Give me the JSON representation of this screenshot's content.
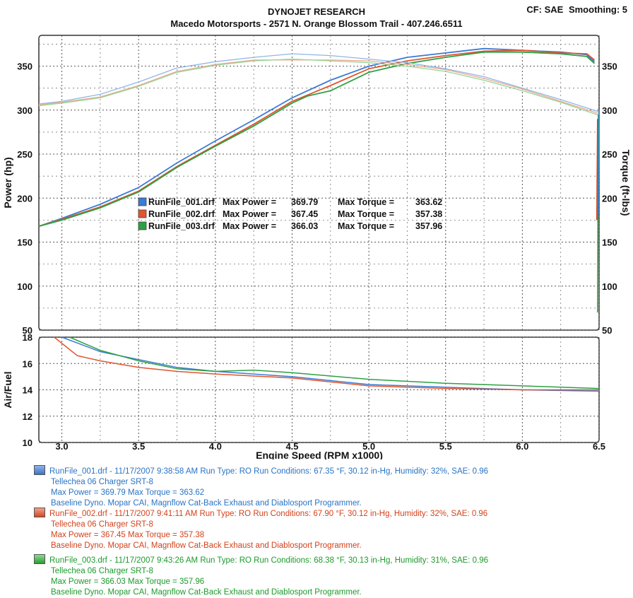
{
  "header": {
    "title": "DYNOJET RESEARCH",
    "shop": "Macedo Motorsports - 2571 N. Orange Blossom Trail - 407.246.6511",
    "cf": "CF: SAE",
    "smoothing": "Smoothing: 5"
  },
  "chart_data": [
    {
      "type": "line",
      "xlabel": "Engine Speed (RPM x1000)",
      "ylabel": "Power (hp)",
      "y2label": "Torque (ft-lbs)",
      "xlim": [
        2.85,
        6.5
      ],
      "ylim": [
        50,
        385
      ],
      "y2lim": [
        50,
        385
      ],
      "x_ticks": [
        3.0,
        3.5,
        4.0,
        4.5,
        5.0,
        5.5,
        6.0,
        6.5
      ],
      "x_tick_labels": [
        "3.0",
        "3.5",
        "4.0",
        "4.5",
        "5.0",
        "5.5",
        "6.0",
        "6.5"
      ],
      "y_ticks": [
        50,
        100,
        150,
        200,
        250,
        300,
        350
      ],
      "y_tick_labels": [
        "50",
        "100",
        "150",
        "200",
        "250",
        "300",
        "350"
      ],
      "y2_ticks": [
        50,
        100,
        150,
        200,
        250,
        300,
        350
      ],
      "y2_tick_labels": [
        "50",
        "100",
        "150",
        "200",
        "250",
        "300",
        "350"
      ],
      "grid": true,
      "inline_legend": [
        {
          "file": "RunFile_001.drf",
          "max_power_label": "Max Power =",
          "max_power": "369.79",
          "max_torque_label": "Max Torque =",
          "max_torque": "363.62",
          "color": "#3a7bd5"
        },
        {
          "file": "RunFile_002.drf",
          "max_power_label": "Max Power =",
          "max_power": "367.45",
          "max_torque_label": "Max Torque =",
          "max_torque": "357.38",
          "color": "#e0552e"
        },
        {
          "file": "RunFile_003.drf",
          "max_power_label": "Max Power =",
          "max_power": "366.03",
          "max_torque_label": "Max Torque =",
          "max_torque": "357.96",
          "color": "#2ea043"
        }
      ],
      "series": [
        {
          "color": "#3a7bd5",
          "kind": "power",
          "x": [
            2.85,
            3.0,
            3.25,
            3.5,
            3.75,
            4.0,
            4.25,
            4.5,
            4.75,
            5.0,
            5.25,
            5.5,
            5.75,
            6.0,
            6.25,
            6.42,
            6.47
          ],
          "y": [
            168,
            177,
            193,
            212,
            240,
            265,
            289,
            314,
            334,
            350,
            360,
            365,
            370,
            368,
            366,
            363,
            355
          ]
        },
        {
          "color": "#e0552e",
          "kind": "power",
          "x": [
            2.85,
            3.0,
            3.25,
            3.5,
            3.75,
            4.0,
            4.25,
            4.5,
            4.75,
            5.0,
            5.25,
            5.5,
            5.75,
            6.0,
            6.25,
            6.42,
            6.47
          ],
          "y": [
            168,
            176,
            190,
            208,
            236,
            260,
            284,
            310,
            328,
            347,
            356,
            362,
            367,
            368,
            365,
            364,
            357
          ]
        },
        {
          "color": "#2ea043",
          "kind": "power",
          "x": [
            2.85,
            3.0,
            3.25,
            3.5,
            3.75,
            4.0,
            4.25,
            4.5,
            4.6,
            4.75,
            5.0,
            5.25,
            5.5,
            5.75,
            6.0,
            6.25,
            6.42,
            6.47
          ],
          "y": [
            168,
            175,
            189,
            207,
            235,
            259,
            282,
            308,
            316,
            322,
            343,
            353,
            360,
            366,
            366,
            364,
            361,
            353
          ]
        },
        {
          "color": "#8fb6e6",
          "kind": "torque",
          "x": [
            2.85,
            3.0,
            3.25,
            3.5,
            3.75,
            4.0,
            4.25,
            4.5,
            4.75,
            5.0,
            5.25,
            5.5,
            5.75,
            6.0,
            6.25,
            6.5
          ],
          "y": [
            307,
            310,
            318,
            332,
            348,
            355,
            360,
            364,
            362,
            358,
            354,
            347,
            338,
            325,
            312,
            298
          ]
        },
        {
          "color": "#f0a890",
          "kind": "torque",
          "x": [
            2.85,
            3.0,
            3.25,
            3.5,
            3.75,
            4.0,
            4.25,
            4.5,
            4.75,
            5.0,
            5.25,
            5.5,
            5.75,
            6.0,
            6.25,
            6.5
          ],
          "y": [
            306,
            309,
            315,
            328,
            344,
            352,
            357,
            357,
            357,
            356,
            352,
            346,
            336,
            324,
            310,
            296
          ]
        },
        {
          "color": "#94d494",
          "kind": "torque",
          "x": [
            2.85,
            3.0,
            3.25,
            3.5,
            3.75,
            4.0,
            4.25,
            4.5,
            4.75,
            5.0,
            5.25,
            5.5,
            5.75,
            6.0,
            6.25,
            6.5
          ],
          "y": [
            305,
            308,
            314,
            327,
            343,
            351,
            356,
            358,
            356,
            354,
            350,
            344,
            334,
            322,
            309,
            294
          ]
        }
      ]
    },
    {
      "type": "line",
      "xlabel": "Engine Speed (RPM x1000)",
      "ylabel": "Air/Fuel",
      "xlim": [
        2.85,
        6.5
      ],
      "ylim": [
        10,
        18
      ],
      "x_ticks": [
        3.0,
        3.5,
        4.0,
        4.5,
        5.0,
        5.5,
        6.0,
        6.5
      ],
      "x_tick_labels": [
        "3.0",
        "3.5",
        "4.0",
        "4.5",
        "5.0",
        "5.5",
        "6.0",
        "6.5"
      ],
      "y_ticks": [
        10,
        12,
        14,
        16,
        18
      ],
      "y_tick_labels": [
        "10",
        "12",
        "14",
        "16",
        "18"
      ],
      "grid": true,
      "series": [
        {
          "color": "#3a7bd5",
          "x": [
            3.0,
            3.25,
            3.5,
            3.75,
            4.0,
            4.5,
            5.0,
            5.5,
            6.0,
            6.5
          ],
          "y": [
            18.0,
            16.9,
            16.3,
            15.7,
            15.4,
            15.0,
            14.4,
            14.2,
            14.0,
            13.9
          ]
        },
        {
          "color": "#e0552e",
          "x": [
            2.95,
            3.1,
            3.25,
            3.5,
            3.75,
            4.0,
            4.5,
            5.0,
            5.5,
            6.0,
            6.5
          ],
          "y": [
            18.0,
            16.6,
            16.2,
            15.7,
            15.4,
            15.2,
            14.9,
            14.3,
            14.1,
            14.0,
            14.0
          ]
        },
        {
          "color": "#2ea043",
          "x": [
            3.05,
            3.25,
            3.5,
            3.75,
            4.0,
            4.25,
            4.5,
            5.0,
            5.5,
            6.0,
            6.5
          ],
          "y": [
            18.0,
            17.0,
            16.2,
            15.6,
            15.4,
            15.5,
            15.3,
            14.8,
            14.5,
            14.3,
            14.1
          ]
        }
      ]
    }
  ],
  "runs": [
    {
      "line1": "RunFile_001.drf - 11/17/2007 9:38:58 AM  Run Type: RO  Run Conditions: 67.35 °F, 30.12 in-Hg,  Humidity:  32%, SAE: 0.96",
      "line2": "Tellechea 06 Charger SRT-8",
      "line3": "Max Power = 369.79  Max Torque = 363.62",
      "line4": "Baseline Dyno. Mopar CAI, Magnflow Cat-Back Exhaust and Diablosport Programmer."
    },
    {
      "line1": "RunFile_002.drf - 11/17/2007 9:41:11 AM  Run Type: RO  Run Conditions: 67.90 °F, 30.12 in-Hg,  Humidity:  32%, SAE: 0.96",
      "line2": "Tellechea 06 Charger SRT-8",
      "line3": "Max Power = 367.45  Max Torque = 357.38",
      "line4": "Baseline Dyno. Mopar CAI, Magnflow Cat-Back Exhaust and Diablosport Programmer."
    },
    {
      "line1": "RunFile_003.drf - 11/17/2007 9:43:26 AM  Run Type: RO  Run Conditions: 68.38 °F, 30.13 in-Hg,  Humidity:  31%, SAE: 0.96",
      "line2": "Tellechea 06 Charger SRT-8",
      "line3": "Max Power = 366.03  Max Torque = 357.96",
      "line4": "Baseline Dyno. Mopar CAI, Magnflow Cat-Back Exhaust and Diablosport Programmer."
    }
  ]
}
